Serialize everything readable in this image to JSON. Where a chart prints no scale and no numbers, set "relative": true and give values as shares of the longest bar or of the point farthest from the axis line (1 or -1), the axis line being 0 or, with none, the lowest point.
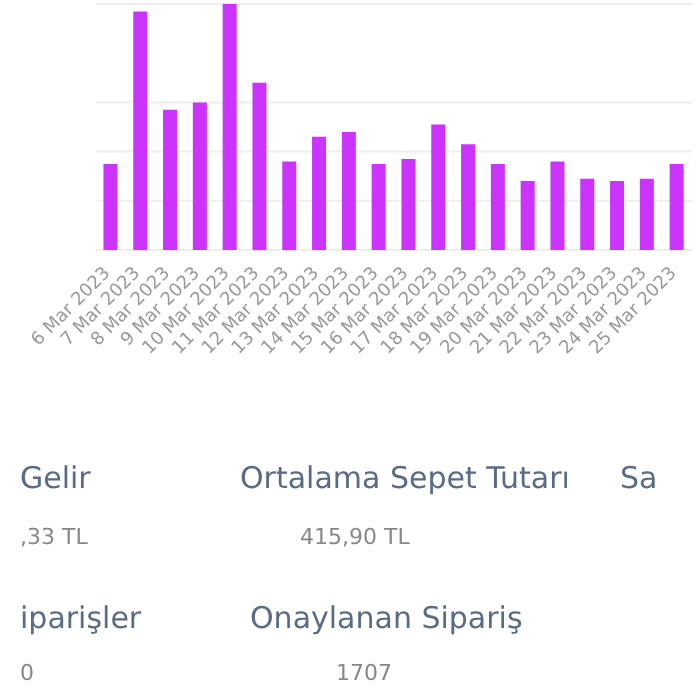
{
  "chart_data": [
    {
      "type": "bar",
      "relative": true,
      "grid": "y",
      "color": "#cc33ff",
      "categories": [
        "6 Mar 2023",
        "7 Mar 2023",
        "8 Mar 2023",
        "9 Mar 2023",
        "10 Mar 2023",
        "11 Mar 2023",
        "12 Mar 2023",
        "13 Mar 2023",
        "14 Mar 2023",
        "15 Mar 2023",
        "16 Mar 2023",
        "17 Mar 2023",
        "18 Mar 2023",
        "19 Mar 2023",
        "20 Mar 2023",
        "21 Mar 2023",
        "22 Mar 2023",
        "23 Mar 2023",
        "24 Mar 2023",
        "25 Mar 2023"
      ],
      "values": [
        0.35,
        0.97,
        0.57,
        0.6,
        1,
        0.68,
        0.36,
        0.46,
        0.48,
        0.35,
        0.37,
        0.51,
        0.43,
        0.35,
        0.28,
        0.36,
        0.29,
        0.28,
        0.29,
        0.35
      ]
    },
    {
      "type": "other",
      "annotations": [
        "Gelir",
        ",33 TL",
        "Ortalama Sepet Tutarı",
        "415,90 TL",
        "Sa",
        "iparişler",
        "0",
        "Onaylanan Sipariş",
        "1707"
      ]
    }
  ]
}
